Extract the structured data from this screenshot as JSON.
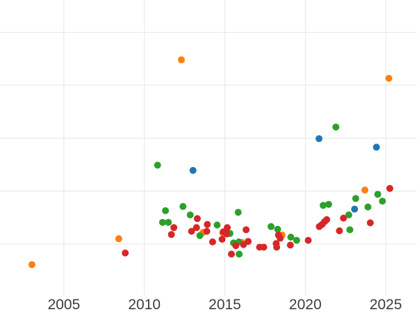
{
  "chart_data": {
    "type": "scatter",
    "title": "",
    "xlabel": "",
    "ylabel": "",
    "x_tick_labels": [
      "2005",
      "2010",
      "2015",
      "2020",
      "2025"
    ],
    "x_ticks": [
      2005,
      2010,
      2015,
      2020,
      2025
    ],
    "xlim": [
      2001.03,
      2026.94
    ],
    "ylim": [
      -0.95,
      4.61
    ],
    "y_gridlines": [
      0,
      1,
      2,
      3,
      4
    ],
    "grid": true,
    "legend_position": "none",
    "marker_radius_px": 5,
    "series": [
      {
        "name": "blue",
        "color": "#1f77b4",
        "points": [
          [
            2013.02,
            1.39
          ],
          [
            2020.85,
            1.99
          ],
          [
            2023.06,
            0.66
          ],
          [
            2024.42,
            1.83
          ]
        ]
      },
      {
        "name": "orange",
        "color": "#ff7f0e",
        "points": [
          [
            2003.01,
            -0.39
          ],
          [
            2008.41,
            0.1
          ],
          [
            2012.3,
            3.48
          ],
          [
            2013.64,
            0.22
          ],
          [
            2014.87,
            0.21
          ],
          [
            2016.06,
            0.03
          ],
          [
            2018.56,
            0.17
          ],
          [
            2023.7,
            1.02
          ],
          [
            2025.19,
            3.13
          ]
        ]
      },
      {
        "name": "green",
        "color": "#2ca02c",
        "points": [
          [
            2010.82,
            1.49
          ],
          [
            2011.13,
            0.41
          ],
          [
            2011.31,
            0.63
          ],
          [
            2011.49,
            0.41
          ],
          [
            2012.4,
            0.71
          ],
          [
            2012.85,
            0.55
          ],
          [
            2013.45,
            0.16
          ],
          [
            2014.52,
            0.36
          ],
          [
            2015.32,
            0.2
          ],
          [
            2015.54,
            0.02
          ],
          [
            2015.83,
            0.6
          ],
          [
            2015.87,
            0.04
          ],
          [
            2015.89,
            -0.19
          ],
          [
            2017.87,
            0.33
          ],
          [
            2018.28,
            0.28
          ],
          [
            2019.1,
            0.13
          ],
          [
            2019.46,
            0.07
          ],
          [
            2021.11,
            0.73
          ],
          [
            2021.45,
            0.75
          ],
          [
            2021.9,
            2.21
          ],
          [
            2022.7,
            0.55
          ],
          [
            2022.77,
            0.27
          ],
          [
            2023.13,
            0.86
          ],
          [
            2023.89,
            0.7
          ],
          [
            2024.5,
            0.94
          ],
          [
            2024.79,
            0.81
          ]
        ]
      },
      {
        "name": "red",
        "color": "#d62728",
        "points": [
          [
            2008.81,
            -0.17
          ],
          [
            2011.68,
            0.18
          ],
          [
            2011.83,
            0.31
          ],
          [
            2012.93,
            0.24
          ],
          [
            2013.24,
            0.31
          ],
          [
            2013.29,
            0.48
          ],
          [
            2013.88,
            0.24
          ],
          [
            2013.91,
            0.37
          ],
          [
            2014.24,
            0.04
          ],
          [
            2014.83,
            0.09
          ],
          [
            2014.91,
            0.23
          ],
          [
            2015.11,
            0.19
          ],
          [
            2015.15,
            0.31
          ],
          [
            2015.41,
            -0.19
          ],
          [
            2015.68,
            -0.03
          ],
          [
            2016.16,
            -0.01
          ],
          [
            2016.32,
            0.27
          ],
          [
            2016.45,
            0.05
          ],
          [
            2017.16,
            -0.06
          ],
          [
            2017.42,
            -0.06
          ],
          [
            2018.19,
            0.01
          ],
          [
            2018.22,
            -0.06
          ],
          [
            2018.33,
            0.17
          ],
          [
            2018.44,
            0.11
          ],
          [
            2019.07,
            -0.02
          ],
          [
            2020.18,
            0.07
          ],
          [
            2020.87,
            0.33
          ],
          [
            2021.04,
            0.37
          ],
          [
            2021.19,
            0.42
          ],
          [
            2021.33,
            0.46
          ],
          [
            2022.12,
            0.25
          ],
          [
            2022.37,
            0.49
          ],
          [
            2024.04,
            0.4
          ],
          [
            2025.25,
            1.05
          ]
        ]
      }
    ]
  },
  "style": {
    "background": "#ffffff",
    "grid_color": "#e6e6e6",
    "tick_label_color": "#3d3d3d"
  }
}
